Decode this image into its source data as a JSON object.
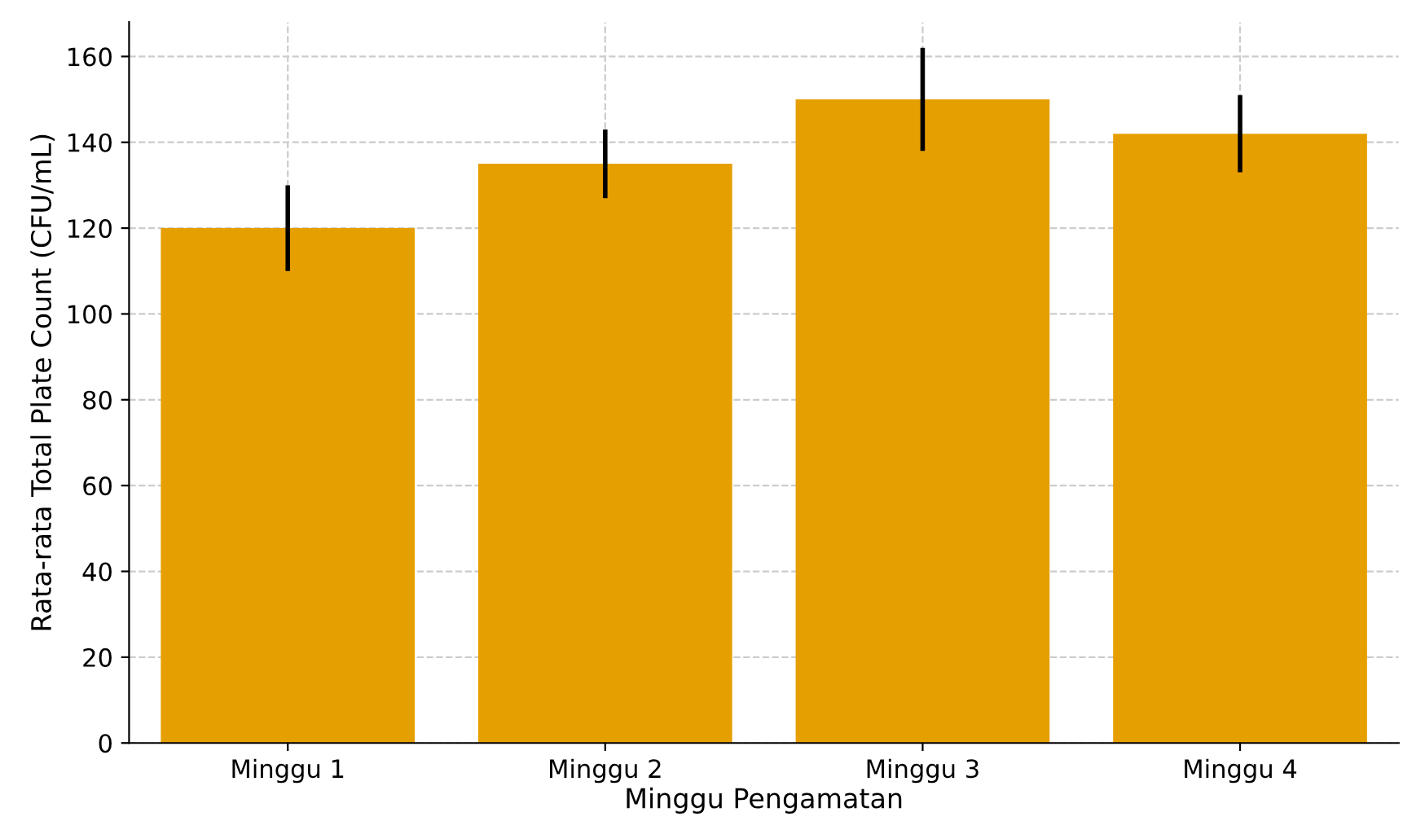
{
  "chart_data": {
    "type": "bar",
    "xlabel": "Minggu Pengamatan",
    "ylabel": "Rata-rata Total Plate Count (CFU/mL)",
    "categories": [
      "Minggu 1",
      "Minggu 2",
      "Minggu 3",
      "Minggu 4"
    ],
    "values": [
      120,
      135,
      150,
      142
    ],
    "errors": [
      10,
      8,
      12,
      9
    ],
    "color": "#e69f00",
    "ylim": [
      0,
      168
    ],
    "yticks": [
      0,
      20,
      40,
      60,
      80,
      100,
      120,
      140,
      160
    ],
    "grid": true
  }
}
